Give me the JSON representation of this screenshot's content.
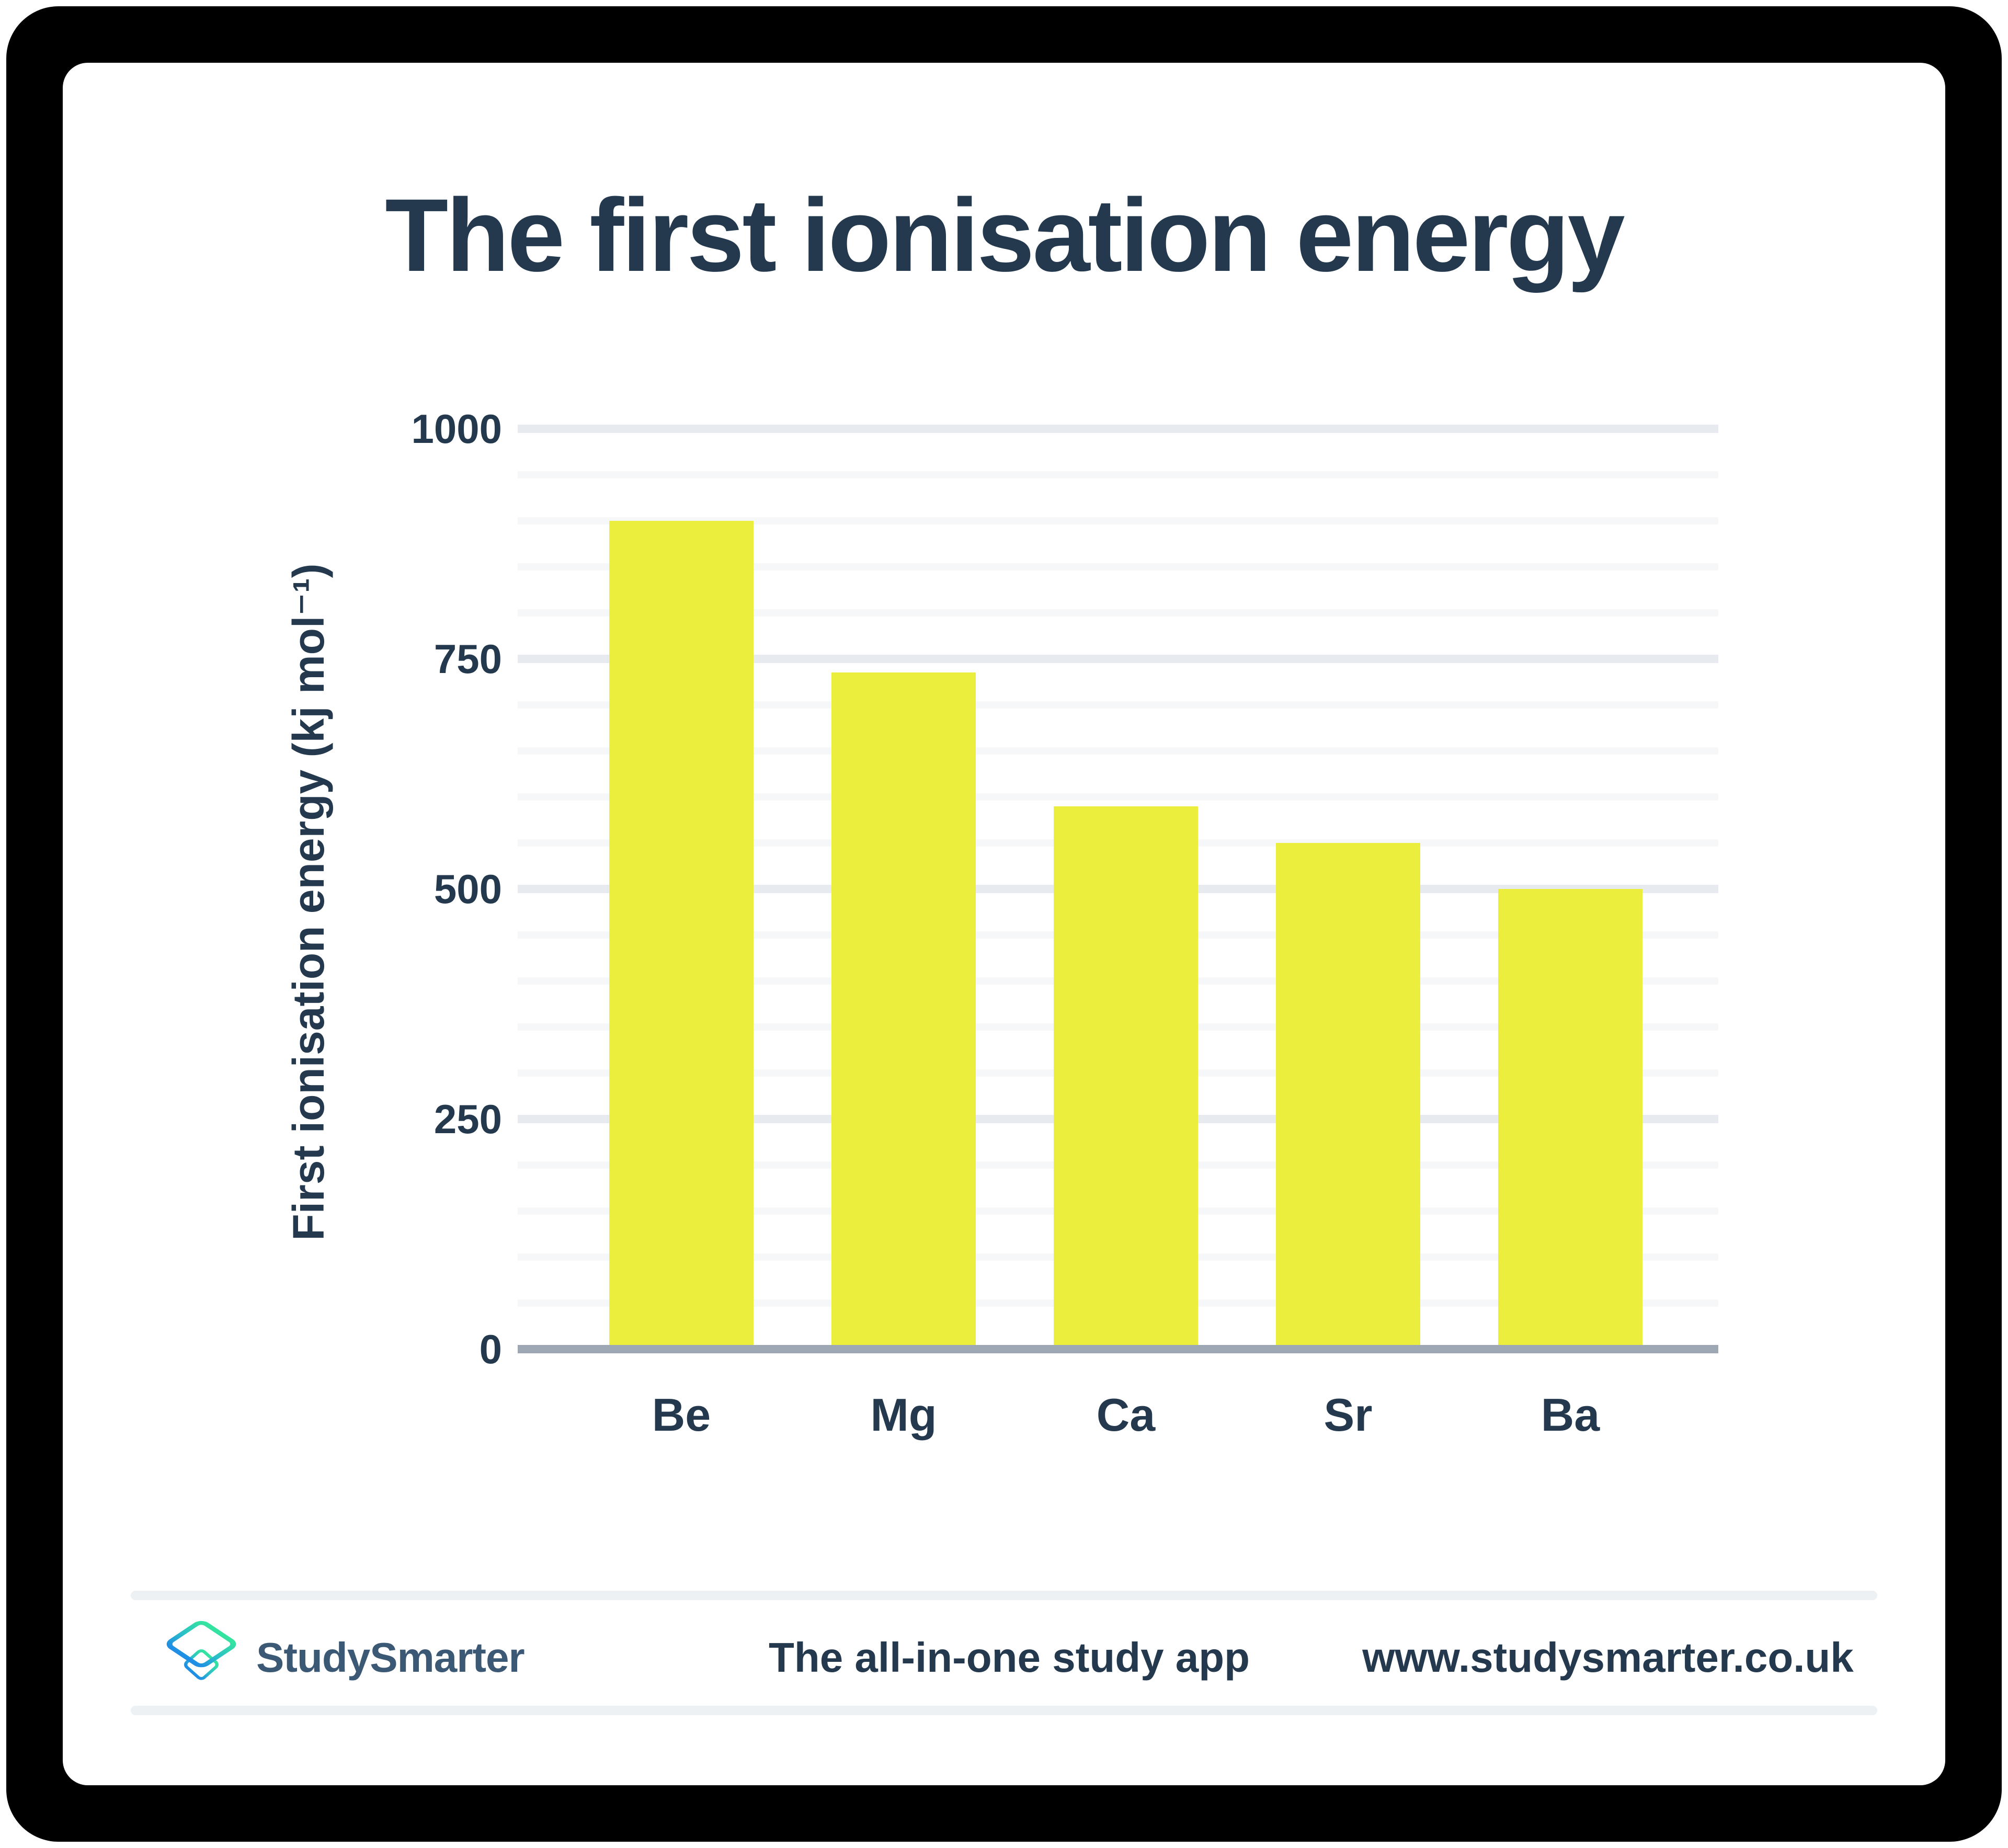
{
  "page": {
    "frame_color": "#000000",
    "card_color": "#ffffff"
  },
  "title": "The first ionisation energy",
  "chart_data": {
    "type": "bar",
    "title": "The first ionisation energy",
    "categories": [
      "Be",
      "Mg",
      "Ca",
      "Sr",
      "Ba"
    ],
    "values": [
      900,
      735,
      590,
      550,
      500
    ],
    "xlabel": "",
    "ylabel": "First ionisation energy (kj mol⁻¹)",
    "ylim": [
      0,
      1000
    ],
    "yticks": [
      0,
      250,
      500,
      750,
      1000
    ],
    "minor_gridline_step": 50,
    "major_gridline_step": 250,
    "grid": "horizontal",
    "legend": false,
    "bar_color": "#ECEE3E",
    "axis_line_color": "#9EA8B4",
    "text_color": "#24394E"
  },
  "footer": {
    "brand": "StudySmarter",
    "tagline": "The all-in-one study app",
    "url": "www.studysmarter.co.uk",
    "logo": "studysmarter-open-box-logo",
    "logo_gradient": [
      "#34E3A0",
      "#2BBFC8",
      "#1F8EE4"
    ],
    "brand_color": "#3B5874"
  },
  "colors": {
    "navy_text": "#24394E",
    "bar_yellow": "#ECEE3E",
    "grid_minor": "#F5F7F9",
    "grid_major": "#E7EAEE",
    "axis_gray": "#9EA8B4",
    "divider": "#EEF1F4"
  }
}
